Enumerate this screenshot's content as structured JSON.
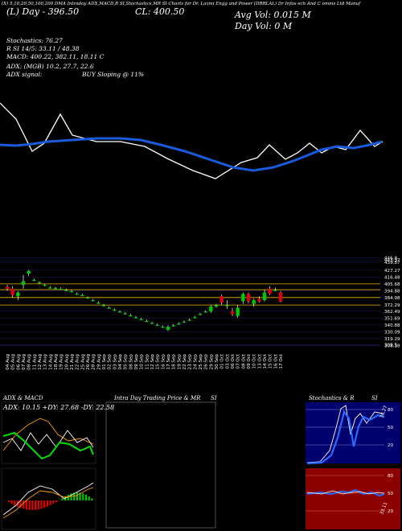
{
  "header": {
    "top_line": "(X) 5,10,20,50,100,200 DMA Intraday ADX,MACD,R SI,Stochastics,MR SI Charts for Dr. Laxmi Engg and Power (DRRLAL) Dr Infos ech And C omms Ltd Manuf",
    "l_line": "(L) Day - 396.50",
    "c_line": "CL: 400.50",
    "avg_vol": "Avg Vol: 0.015 M",
    "day_vol": "Day Vol: 0  M",
    "stoch": "Stochastics: 76.27",
    "rsi": "R              SI 14/5: 33.11 / 48.38",
    "macd": "MACD: 400.22, 382.11, 18.11 C",
    "adx": "ADX:                     (MGB) 10.2, 27.7, 22.6",
    "adx_signal_label": "ADX  signal:",
    "adx_signal": "BUY Sloping @ 11%"
  },
  "colors": {
    "background": "#000000",
    "up_candle": "#00c800",
    "down_candle": "#e00000",
    "ma_line": "#1a5adc",
    "price_line": "#ffffff",
    "support_line": "#e8b400",
    "stoch_bg": "#00006e",
    "rsi_bg": "#8c0000"
  },
  "panels": {
    "adx_title": "ADX  & MACD",
    "adx_values": "ADX: 10.15  +DY: 27.68  -DY: 22.58",
    "intraday_title": "Intra  Day Trading Price  & MR",
    "intraday_si": "SI",
    "stoch_title": "Stochastics & R",
    "stoch_si": "SI",
    "stoch_ticks": [
      "80",
      "50",
      "20"
    ],
    "rsi_ticks": [
      "80",
      "50",
      "20"
    ],
    "stoch_value": "76.27",
    "rsi_value": "33.11"
  },
  "chart_data": {
    "type": "candlestick",
    "price_ticks": [
      "446.8",
      "443.37",
      "439.87",
      "427.27",
      "416.48",
      "405.68",
      "394.88",
      "384.08",
      "372.29",
      "362.49",
      "351.69",
      "340.88",
      "330.09",
      "319.29",
      "309.5",
      "308.38"
    ],
    "dates": [
      "04 Aug",
      "05 Aug",
      "06 Aug",
      "07 Aug",
      "08 Aug",
      "11 Aug",
      "12 Aug",
      "13 Aug",
      "14 Aug",
      "18 Aug",
      "19 Aug",
      "20 Aug",
      "21 Aug",
      "22 Aug",
      "25 Aug",
      "26 Aug",
      "28 Aug",
      "29 Aug",
      "01 Sep",
      "02 Sep",
      "03 Sep",
      "04 Sep",
      "05 Sep",
      "08 Sep",
      "09 Sep",
      "10 Sep",
      "11 Sep",
      "12 Sep",
      "15 Sep",
      "16 Sep",
      "17 Sep",
      "18 Sep",
      "19 Sep",
      "22 Sep",
      "23 Sep",
      "24 Sep",
      "25 Sep",
      "26 Sep",
      "29 Sep",
      "30 Sep",
      "01 Oct",
      "03 Oct",
      "06 Oct",
      "07 Oct",
      "08 Oct",
      "09 Oct",
      "10 Oct",
      "13 Oct",
      "14 Oct",
      "15 Oct",
      "16 Oct",
      "17 Oct"
    ],
    "candles": [
      {
        "o": 401,
        "h": 404,
        "l": 395,
        "c": 398
      },
      {
        "o": 398,
        "h": 402,
        "l": 384,
        "c": 388
      },
      {
        "o": 386,
        "h": 394,
        "l": 380,
        "c": 392
      },
      {
        "o": 404,
        "h": 420,
        "l": 398,
        "c": 410
      },
      {
        "o": 422,
        "h": 428,
        "l": 418,
        "c": 426
      },
      {
        "o": 412,
        "h": 414,
        "l": 410,
        "c": 412
      },
      {
        "o": 408,
        "h": 410,
        "l": 406,
        "c": 408
      },
      {
        "o": 404,
        "h": 406,
        "l": 402,
        "c": 404
      },
      {
        "o": 400,
        "h": 402,
        "l": 398,
        "c": 400
      },
      {
        "o": 399,
        "h": 401,
        "l": 397,
        "c": 399
      },
      {
        "o": 398,
        "h": 400,
        "l": 396,
        "c": 398
      },
      {
        "o": 396,
        "h": 398,
        "l": 394,
        "c": 396
      },
      {
        "o": 394,
        "h": 396,
        "l": 392,
        "c": 394
      },
      {
        "o": 390,
        "h": 392,
        "l": 388,
        "c": 390
      },
      {
        "o": 388,
        "h": 390,
        "l": 386,
        "c": 388
      },
      {
        "o": 384,
        "h": 386,
        "l": 382,
        "c": 384
      },
      {
        "o": 380,
        "h": 382,
        "l": 378,
        "c": 380
      },
      {
        "o": 376,
        "h": 378,
        "l": 374,
        "c": 376
      },
      {
        "o": 372,
        "h": 374,
        "l": 370,
        "c": 372
      },
      {
        "o": 368,
        "h": 370,
        "l": 366,
        "c": 368
      },
      {
        "o": 365,
        "h": 367,
        "l": 363,
        "c": 365
      },
      {
        "o": 362,
        "h": 364,
        "l": 360,
        "c": 362
      },
      {
        "o": 359,
        "h": 361,
        "l": 357,
        "c": 359
      },
      {
        "o": 356,
        "h": 358,
        "l": 354,
        "c": 356
      },
      {
        "o": 353,
        "h": 355,
        "l": 351,
        "c": 353
      },
      {
        "o": 350,
        "h": 352,
        "l": 348,
        "c": 350
      },
      {
        "o": 347,
        "h": 349,
        "l": 345,
        "c": 347
      },
      {
        "o": 344,
        "h": 346,
        "l": 342,
        "c": 344
      },
      {
        "o": 341,
        "h": 343,
        "l": 339,
        "c": 341
      },
      {
        "o": 338,
        "h": 340,
        "l": 336,
        "c": 338
      },
      {
        "o": 333,
        "h": 340,
        "l": 331,
        "c": 338
      },
      {
        "o": 340,
        "h": 342,
        "l": 338,
        "c": 340
      },
      {
        "o": 343,
        "h": 345,
        "l": 341,
        "c": 343
      },
      {
        "o": 346,
        "h": 348,
        "l": 344,
        "c": 346
      },
      {
        "o": 349,
        "h": 351,
        "l": 347,
        "c": 349
      },
      {
        "o": 353,
        "h": 355,
        "l": 351,
        "c": 353
      },
      {
        "o": 358,
        "h": 360,
        "l": 356,
        "c": 358
      },
      {
        "o": 362,
        "h": 364,
        "l": 360,
        "c": 362
      },
      {
        "o": 362,
        "h": 372,
        "l": 360,
        "c": 370
      },
      {
        "o": 370,
        "h": 374,
        "l": 368,
        "c": 372
      },
      {
        "o": 386,
        "h": 389,
        "l": 372,
        "c": 376
      },
      {
        "o": 372,
        "h": 380,
        "l": 366,
        "c": 372
      },
      {
        "o": 362,
        "h": 368,
        "l": 355,
        "c": 358
      },
      {
        "o": 355,
        "h": 372,
        "l": 352,
        "c": 368
      },
      {
        "o": 378,
        "h": 392,
        "l": 374,
        "c": 390
      },
      {
        "o": 390,
        "h": 392,
        "l": 375,
        "c": 378
      },
      {
        "o": 374,
        "h": 382,
        "l": 370,
        "c": 380
      },
      {
        "o": 382,
        "h": 386,
        "l": 376,
        "c": 378
      },
      {
        "o": 380,
        "h": 396,
        "l": 378,
        "c": 392
      },
      {
        "o": 398,
        "h": 402,
        "l": 388,
        "c": 390
      },
      {
        "o": 396,
        "h": 400,
        "l": 394,
        "c": 396
      },
      {
        "o": 392,
        "h": 394,
        "l": 376,
        "c": 378
      }
    ],
    "support_levels": [
      405.68,
      396.5,
      384.08,
      372.29
    ],
    "ylim": [
      305,
      450
    ]
  }
}
